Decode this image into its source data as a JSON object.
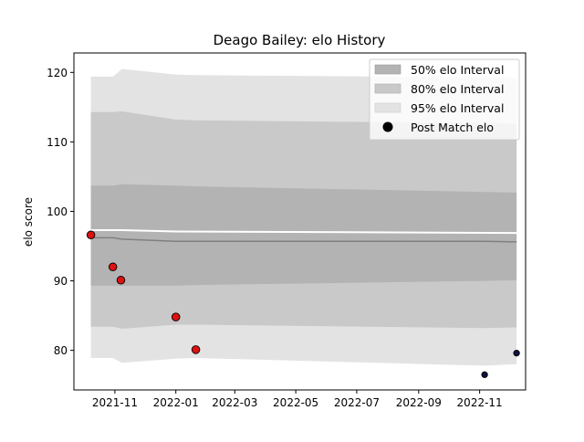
{
  "chart_data": {
    "type": "area",
    "title": "Deago Bailey: elo History",
    "xlabel": "",
    "ylabel": "elo score",
    "xlim": [
      "2021-09-21",
      "2022-12-17"
    ],
    "ylim": [
      74.3,
      122.8
    ],
    "x_ticks": [
      "2021-11",
      "2022-01",
      "2022-03",
      "2022-05",
      "2022-07",
      "2022-09",
      "2022-11"
    ],
    "y_ticks": [
      80,
      90,
      100,
      110,
      120
    ],
    "grid": false,
    "legend_position": "top-right",
    "legend": {
      "band50": "50% elo Interval",
      "band80": "80% elo Interval",
      "band95": "95% elo Interval",
      "points": "Post Match elo"
    },
    "colors": {
      "band50": "#b3b3b3",
      "band80": "#c9c9c9",
      "band95": "#e3e3e3",
      "mean_line": "#808080",
      "upper_line": "#ffffff",
      "point_red": "#dd1111",
      "point_navy": "#101040"
    },
    "mean_series": {
      "dates": [
        "2021-10-08",
        "2021-10-30",
        "2021-11-08",
        "2022-01-01",
        "2022-01-21",
        "2022-11-06",
        "2022-12-08"
      ],
      "values": [
        96.2,
        96.2,
        96.0,
        95.7,
        95.7,
        95.7,
        95.6
      ]
    },
    "upper_line_series": {
      "dates": [
        "2021-10-08",
        "2021-11-08",
        "2022-01-01",
        "2022-12-08"
      ],
      "values": [
        97.3,
        97.3,
        97.1,
        96.9
      ]
    },
    "intervals": {
      "dates": [
        "2021-10-08",
        "2021-10-30",
        "2021-11-08",
        "2022-01-01",
        "2022-01-21",
        "2022-11-06",
        "2022-12-08"
      ],
      "band50_upper": [
        103.7,
        103.7,
        103.9,
        103.7,
        103.6,
        102.8,
        102.7
      ],
      "band50_lower": [
        89.3,
        89.3,
        89.3,
        89.3,
        89.4,
        90.0,
        90.1
      ],
      "band80_upper": [
        114.3,
        114.3,
        114.4,
        113.2,
        113.1,
        112.7,
        112.6
      ],
      "band80_lower": [
        83.4,
        83.4,
        83.1,
        83.7,
        83.7,
        83.2,
        83.3
      ],
      "band95_upper": [
        119.4,
        119.4,
        120.5,
        119.7,
        119.6,
        119.3,
        119.2
      ],
      "band95_lower": [
        78.9,
        78.9,
        78.2,
        78.8,
        78.9,
        77.8,
        78.0
      ]
    },
    "points": [
      {
        "date": "2021-10-08",
        "value": 96.6,
        "color": "red"
      },
      {
        "date": "2021-10-30",
        "value": 92.0,
        "color": "red"
      },
      {
        "date": "2021-11-07",
        "value": 90.1,
        "color": "red"
      },
      {
        "date": "2022-01-01",
        "value": 84.8,
        "color": "red"
      },
      {
        "date": "2022-01-21",
        "value": 80.1,
        "color": "red"
      },
      {
        "date": "2022-11-06",
        "value": 76.5,
        "color": "navy"
      },
      {
        "date": "2022-12-08",
        "value": 79.6,
        "color": "navy"
      }
    ]
  }
}
